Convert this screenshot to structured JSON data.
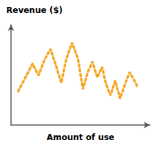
{
  "chart_data": {
    "type": "line",
    "title": "Revenue ($)",
    "xlabel": "Amount of use",
    "x": [
      0.0,
      0.06,
      0.12,
      0.17,
      0.22,
      0.27,
      0.31,
      0.36,
      0.4,
      0.45,
      0.5,
      0.54,
      0.58,
      0.62,
      0.66,
      0.7,
      0.73,
      0.77,
      0.81,
      0.85,
      0.89,
      0.93,
      0.97,
      1.0
    ],
    "values": [
      0.42,
      0.55,
      0.68,
      0.57,
      0.72,
      0.82,
      0.68,
      0.5,
      0.72,
      0.88,
      0.72,
      0.44,
      0.6,
      0.7,
      0.55,
      0.65,
      0.5,
      0.38,
      0.52,
      0.35,
      0.48,
      0.6,
      0.52,
      0.45
    ],
    "color": "#F5A623",
    "line_style": "dashed",
    "xlim": [
      -0.06,
      1.1
    ],
    "ylim": [
      0.1,
      1.05
    ],
    "tick_labels": false,
    "grid": false
  }
}
